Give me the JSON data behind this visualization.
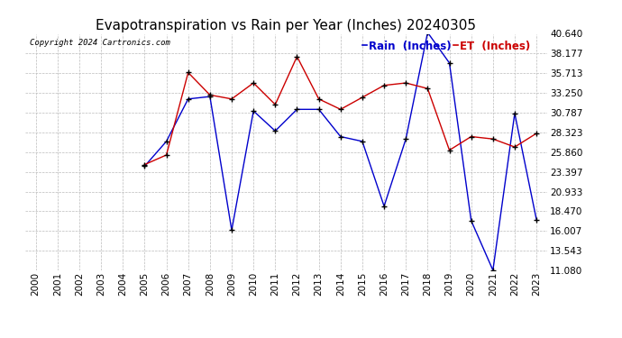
{
  "title": "Evapotranspiration vs Rain per Year (Inches) 20240305",
  "copyright": "Copyright 2024 Cartronics.com",
  "legend_rain": "Rain  (Inches)",
  "legend_et": "ET  (Inches)",
  "years": [
    2000,
    2001,
    2002,
    2003,
    2004,
    2005,
    2006,
    2007,
    2008,
    2009,
    2010,
    2011,
    2012,
    2013,
    2014,
    2015,
    2016,
    2017,
    2018,
    2019,
    2020,
    2021,
    2022,
    2023
  ],
  "rain": [
    null,
    null,
    null,
    null,
    null,
    24.1,
    27.2,
    32.5,
    32.8,
    16.1,
    31.0,
    28.5,
    31.2,
    31.2,
    27.8,
    27.2,
    19.1,
    27.5,
    40.8,
    37.0,
    17.3,
    11.1,
    30.7,
    17.4
  ],
  "et": [
    null,
    null,
    null,
    null,
    null,
    24.3,
    25.5,
    35.8,
    33.0,
    32.5,
    34.5,
    31.8,
    37.8,
    32.5,
    31.2,
    32.7,
    34.2,
    34.5,
    33.8,
    26.1,
    27.8,
    27.5,
    26.5,
    28.2
  ],
  "ylim_min": 11.08,
  "ylim_max": 40.64,
  "yticks": [
    11.08,
    13.543,
    16.007,
    18.47,
    20.933,
    23.397,
    25.86,
    28.323,
    30.787,
    33.25,
    35.713,
    38.177,
    40.64
  ],
  "rain_color": "#0000cc",
  "et_color": "#cc0000",
  "background_color": "#ffffff",
  "grid_color": "#bbbbbb",
  "title_fontsize": 11,
  "tick_fontsize": 7.5,
  "legend_fontsize": 8.5,
  "fig_width": 6.9,
  "fig_height": 3.75,
  "dpi": 100
}
